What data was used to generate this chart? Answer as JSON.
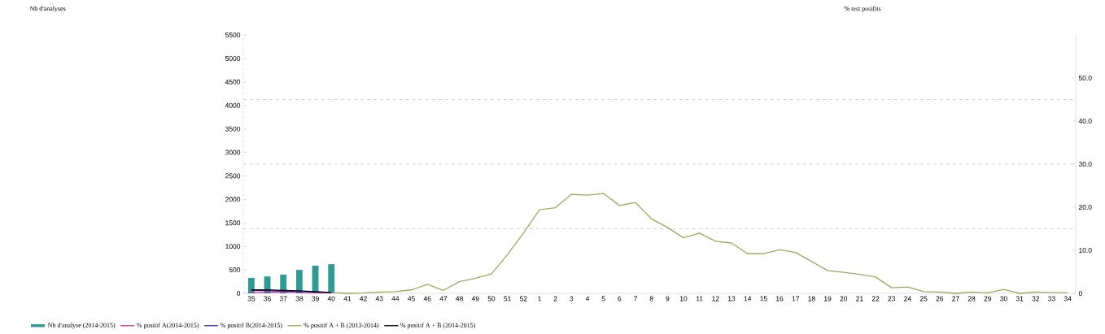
{
  "chart_data": {
    "type": "bar",
    "annotations": [
      "Nb d'analyses"
    ],
    "y2label": "% test posifits",
    "categories": [
      "35",
      "36",
      "37",
      "38",
      "39",
      "40",
      "41",
      "42",
      "43",
      "44",
      "45",
      "46",
      "47",
      "48",
      "49",
      "50",
      "51",
      "52",
      "1",
      "2",
      "3",
      "4",
      "5",
      "6",
      "7",
      "8",
      "9",
      "10",
      "11",
      "12",
      "13",
      "14",
      "15",
      "16",
      "17",
      "18",
      "19",
      "20",
      "21",
      "22",
      "23",
      "24",
      "25",
      "26",
      "27",
      "28",
      "29",
      "30",
      "31",
      "32",
      "33",
      "34"
    ],
    "ylim": [
      0,
      5500
    ],
    "yticks": [
      0,
      500,
      1000,
      1500,
      2000,
      2500,
      3000,
      3500,
      4000,
      4500,
      5000,
      5500
    ],
    "y2lim": [
      0,
      60
    ],
    "y2ticks": [
      0,
      {
        "value": 10,
        "label": "10.0"
      },
      {
        "value": 20,
        "label": "20.0"
      },
      {
        "value": 30,
        "label": "30.0"
      },
      {
        "value": 40,
        "label": "40.0"
      },
      {
        "value": 50,
        "label": "50.0"
      }
    ],
    "ref_lines": [
      {
        "axis": "y2",
        "value": 15,
        "color": "#bbbbbb",
        "line_style": "dashed"
      },
      {
        "axis": "y2",
        "value": 30,
        "color": "#bbbbbb",
        "line_style": "dashed"
      },
      {
        "axis": "y2",
        "value": 45,
        "color": "#bbbbbb",
        "line_style": "dashed"
      }
    ],
    "legend": "bottom",
    "series": [
      {
        "name": "Nb d'analyse (2014-2015)",
        "color": "#2e9a94",
        "values": [
          330,
          360,
          400,
          500,
          590,
          620,
          null,
          null,
          null,
          null,
          null,
          null,
          null,
          null,
          null,
          null,
          null,
          null,
          null,
          null,
          null,
          null,
          null,
          null,
          null,
          null,
          null,
          null,
          null,
          null,
          null,
          null,
          null,
          null,
          null,
          null,
          null,
          null,
          null,
          null,
          null,
          null,
          null,
          null,
          null,
          null,
          null,
          null,
          null,
          null,
          null,
          null
        ]
      },
      {
        "name": "% positif A(2014-2015)",
        "type": "line",
        "axis": "y2",
        "color": "#cc3399",
        "values": [
          0.2,
          0.2,
          0.3,
          0.2,
          0.1,
          0.1,
          null,
          null,
          null,
          null,
          null,
          null,
          null,
          null,
          null,
          null,
          null,
          null,
          null,
          null,
          null,
          null,
          null,
          null,
          null,
          null,
          null,
          null,
          null,
          null,
          null,
          null,
          null,
          null,
          null,
          null,
          null,
          null,
          null,
          null,
          null,
          null,
          null,
          null,
          null,
          null,
          null,
          null,
          null,
          null,
          null,
          null
        ]
      },
      {
        "name": "% positif B(2014-2015)",
        "type": "line",
        "axis": "y2",
        "color": "#3333aa",
        "values": [
          0.7,
          0.6,
          0.5,
          0.4,
          0.3,
          0.2,
          null,
          null,
          null,
          null,
          null,
          null,
          null,
          null,
          null,
          null,
          null,
          null,
          null,
          null,
          null,
          null,
          null,
          null,
          null,
          null,
          null,
          null,
          null,
          null,
          null,
          null,
          null,
          null,
          null,
          null,
          null,
          null,
          null,
          null,
          null,
          null,
          null,
          null,
          null,
          null,
          null,
          null,
          null,
          null,
          null,
          null
        ]
      },
      {
        "name": "% positif A + B (2013-2014)",
        "type": "line",
        "axis": "y2",
        "color": "#a0a860",
        "values": [
          null,
          null,
          null,
          null,
          null,
          0.2,
          0,
          0.1,
          0.3,
          0.4,
          0.8,
          2.1,
          0.7,
          2.7,
          3.5,
          4.5,
          9.0,
          14.0,
          19.4,
          19.9,
          23.0,
          22.8,
          23.2,
          20.4,
          21.1,
          17.3,
          15.3,
          12.9,
          14.0,
          12.1,
          11.7,
          9.2,
          9.2,
          10.1,
          9.5,
          7.4,
          5.3,
          4.9,
          4.4,
          3.8,
          1.3,
          1.5,
          0.4,
          0.3,
          0,
          0.3,
          0.1,
          0.9,
          0,
          0.3,
          0.2,
          0.1
        ]
      },
      {
        "name": "% positif A + B (2014-2015)",
        "type": "line",
        "axis": "y2",
        "color": "#000000",
        "values": [
          0.8,
          0.8,
          0.7,
          0.6,
          0.4,
          0.2,
          null,
          null,
          null,
          null,
          null,
          null,
          null,
          null,
          null,
          null,
          null,
          null,
          null,
          null,
          null,
          null,
          null,
          null,
          null,
          null,
          null,
          null,
          null,
          null,
          null,
          null,
          null,
          null,
          null,
          null,
          null,
          null,
          null,
          null,
          null,
          null,
          null,
          null,
          null,
          null,
          null,
          null,
          null,
          null,
          null,
          null
        ]
      }
    ]
  }
}
